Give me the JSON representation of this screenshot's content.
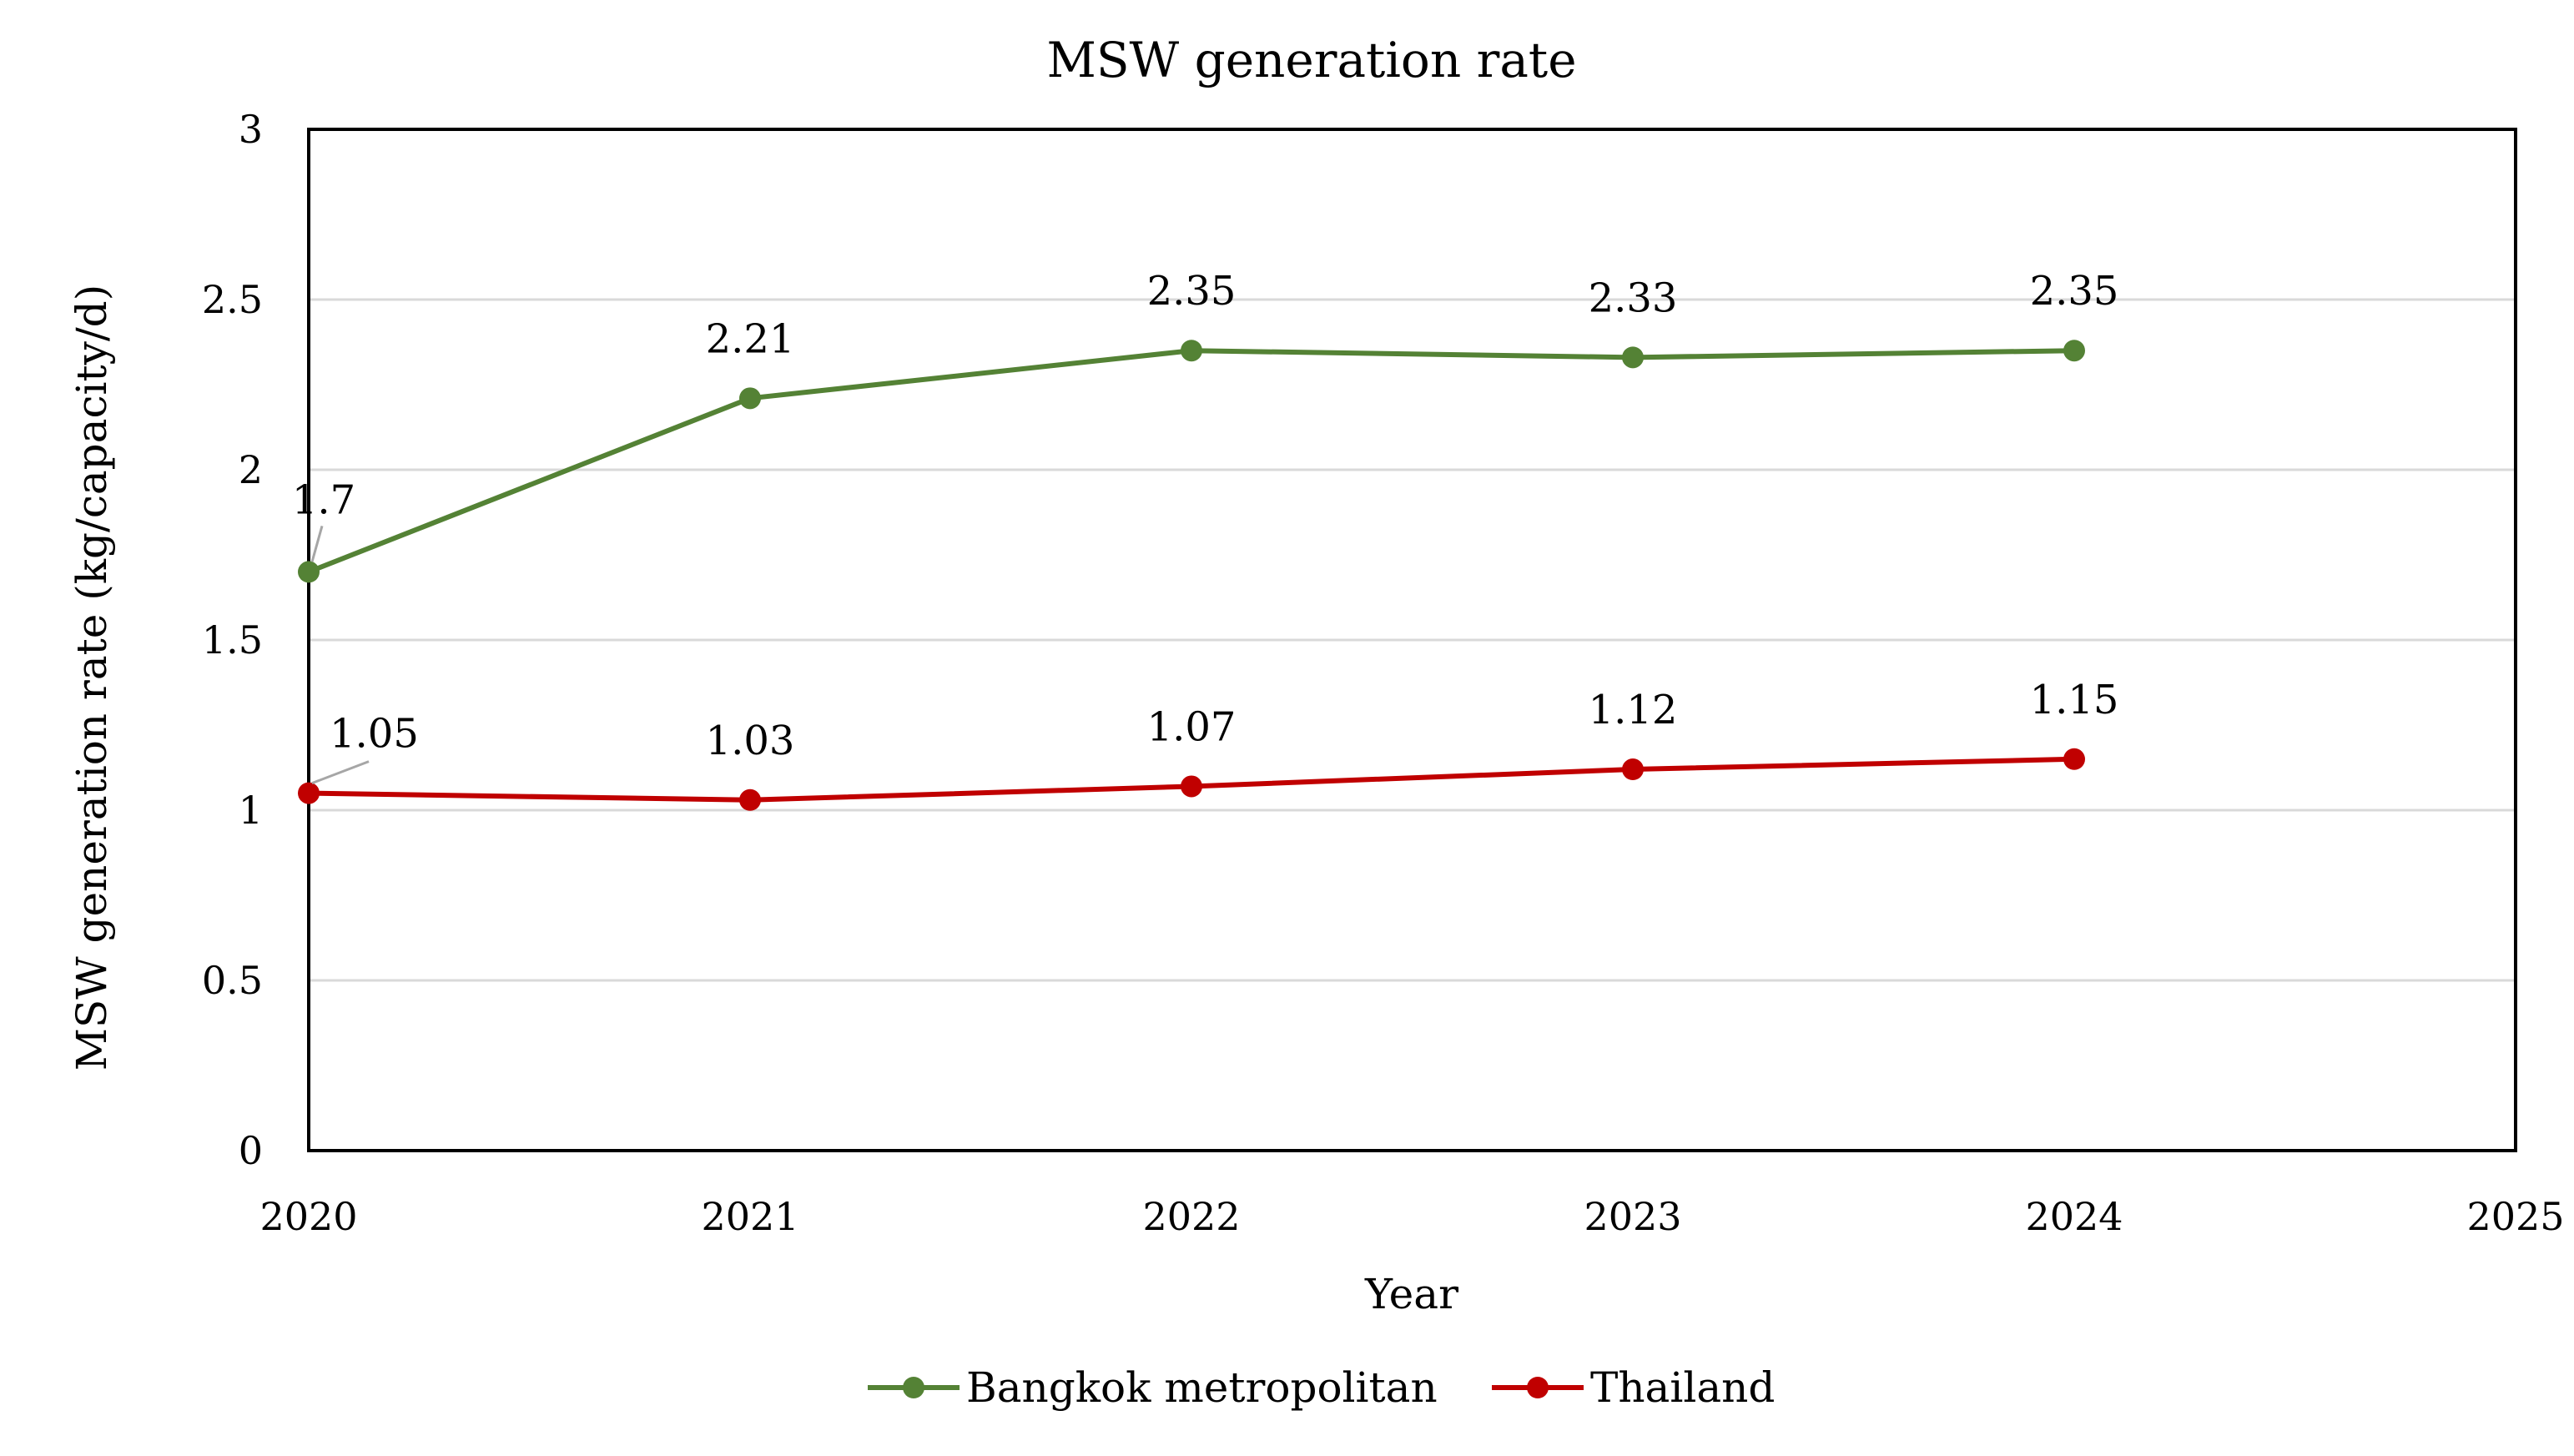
{
  "chart_data": {
    "type": "line",
    "title": "MSW generation rate",
    "xlabel": "Year",
    "ylabel": "MSW generation rate (kg/capacity/d)",
    "xlim": [
      2020,
      2025
    ],
    "ylim": [
      0,
      3
    ],
    "xticks": [
      2020,
      2021,
      2022,
      2023,
      2024,
      2025
    ],
    "yticks": [
      0,
      0.5,
      1,
      1.5,
      2,
      2.5,
      3
    ],
    "grid": true,
    "legend_position": "bottom",
    "x": [
      2020,
      2021,
      2022,
      2023,
      2024
    ],
    "series": [
      {
        "name": "Bangkok metropolitan",
        "color": "#548235",
        "values": [
          1.7,
          2.21,
          2.35,
          2.33,
          2.35
        ],
        "labels": [
          "1.7",
          "2.21",
          "2.35",
          "2.33",
          "2.35"
        ]
      },
      {
        "name": "Thailand",
        "color": "#C00000",
        "values": [
          1.05,
          1.03,
          1.07,
          1.12,
          1.15
        ],
        "labels": [
          "1.05",
          "1.03",
          "1.07",
          "1.12",
          "1.15"
        ]
      }
    ]
  }
}
